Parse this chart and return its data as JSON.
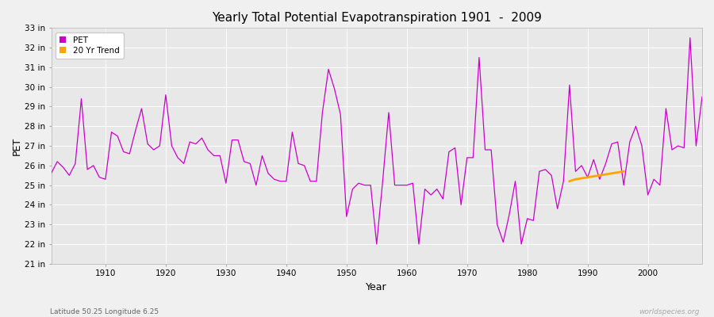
{
  "title": "Yearly Total Potential Evapotranspiration 1901  -  2009",
  "xlabel": "Year",
  "ylabel": "PET",
  "footnote_left": "Latitude 50.25 Longitude 6.25",
  "footnote_right": "worldspecies.org",
  "ylim": [
    21,
    33
  ],
  "ytick_labels": [
    "21 in",
    "22 in",
    "23 in",
    "24 in",
    "25 in",
    "26 in",
    "27 in",
    "28 in",
    "29 in",
    "30 in",
    "31 in",
    "32 in",
    "33 in"
  ],
  "ytick_values": [
    21,
    22,
    23,
    24,
    25,
    26,
    27,
    28,
    29,
    30,
    31,
    32,
    33
  ],
  "bg_color": "#f0f0f0",
  "plot_bg_color": "#e8e8e8",
  "grid_color": "#ffffff",
  "pet_color": "#cc00cc",
  "trend_color": "#ffa500",
  "years": [
    1901,
    1902,
    1903,
    1904,
    1905,
    1906,
    1907,
    1908,
    1909,
    1910,
    1911,
    1912,
    1913,
    1914,
    1915,
    1916,
    1917,
    1918,
    1919,
    1920,
    1921,
    1922,
    1923,
    1924,
    1925,
    1926,
    1927,
    1928,
    1929,
    1930,
    1931,
    1932,
    1933,
    1934,
    1935,
    1936,
    1937,
    1938,
    1939,
    1940,
    1941,
    1942,
    1943,
    1944,
    1945,
    1946,
    1947,
    1948,
    1949,
    1950,
    1951,
    1952,
    1953,
    1954,
    1955,
    1956,
    1957,
    1958,
    1959,
    1960,
    1961,
    1962,
    1963,
    1964,
    1965,
    1966,
    1967,
    1968,
    1969,
    1970,
    1971,
    1972,
    1973,
    1974,
    1975,
    1976,
    1977,
    1978,
    1979,
    1980,
    1981,
    1982,
    1983,
    1984,
    1985,
    1986,
    1987,
    1988,
    1989,
    1990,
    1991,
    1992,
    1993,
    1994,
    1995,
    1996,
    1997,
    1998,
    1999,
    2000,
    2001,
    2002,
    2003,
    2004,
    2005,
    2006,
    2007,
    2008,
    2009
  ],
  "pet_values": [
    25.6,
    26.2,
    25.9,
    25.5,
    26.1,
    29.4,
    25.8,
    26.0,
    25.4,
    25.3,
    27.7,
    27.5,
    26.7,
    26.6,
    27.8,
    28.9,
    27.1,
    26.8,
    27.0,
    29.6,
    27.0,
    26.4,
    26.1,
    27.2,
    27.1,
    27.4,
    26.8,
    26.5,
    26.5,
    25.1,
    27.3,
    27.3,
    26.2,
    26.1,
    25.0,
    26.5,
    25.6,
    25.3,
    25.2,
    25.2,
    27.7,
    26.1,
    26.0,
    25.2,
    25.2,
    28.7,
    30.9,
    29.9,
    28.6,
    23.4,
    24.8,
    25.1,
    25.0,
    25.0,
    22.0,
    25.2,
    28.7,
    25.0,
    25.0,
    25.0,
    25.1,
    22.0,
    24.8,
    24.5,
    24.8,
    24.3,
    26.7,
    26.9,
    24.0,
    26.4,
    26.4,
    31.5,
    26.8,
    26.8,
    23.0,
    22.1,
    23.5,
    25.2,
    22.0,
    23.3,
    23.2,
    25.7,
    25.8,
    25.5,
    23.8,
    25.2,
    30.1,
    25.7,
    26.0,
    25.4,
    26.3,
    25.3,
    26.1,
    27.1,
    27.2,
    25.0,
    27.2,
    28.0,
    27.0,
    24.5,
    25.3,
    25.0,
    28.9,
    26.8,
    27.0,
    26.9,
    32.5,
    27.0,
    29.5
  ],
  "trend_years": [
    1987,
    1988,
    1989,
    1990,
    1991,
    1992,
    1993,
    1994,
    1995,
    1996
  ],
  "trend_values": [
    25.2,
    25.3,
    25.35,
    25.4,
    25.45,
    25.5,
    25.55,
    25.6,
    25.65,
    25.7
  ],
  "xlim_left": 1901,
  "xlim_right": 2009
}
